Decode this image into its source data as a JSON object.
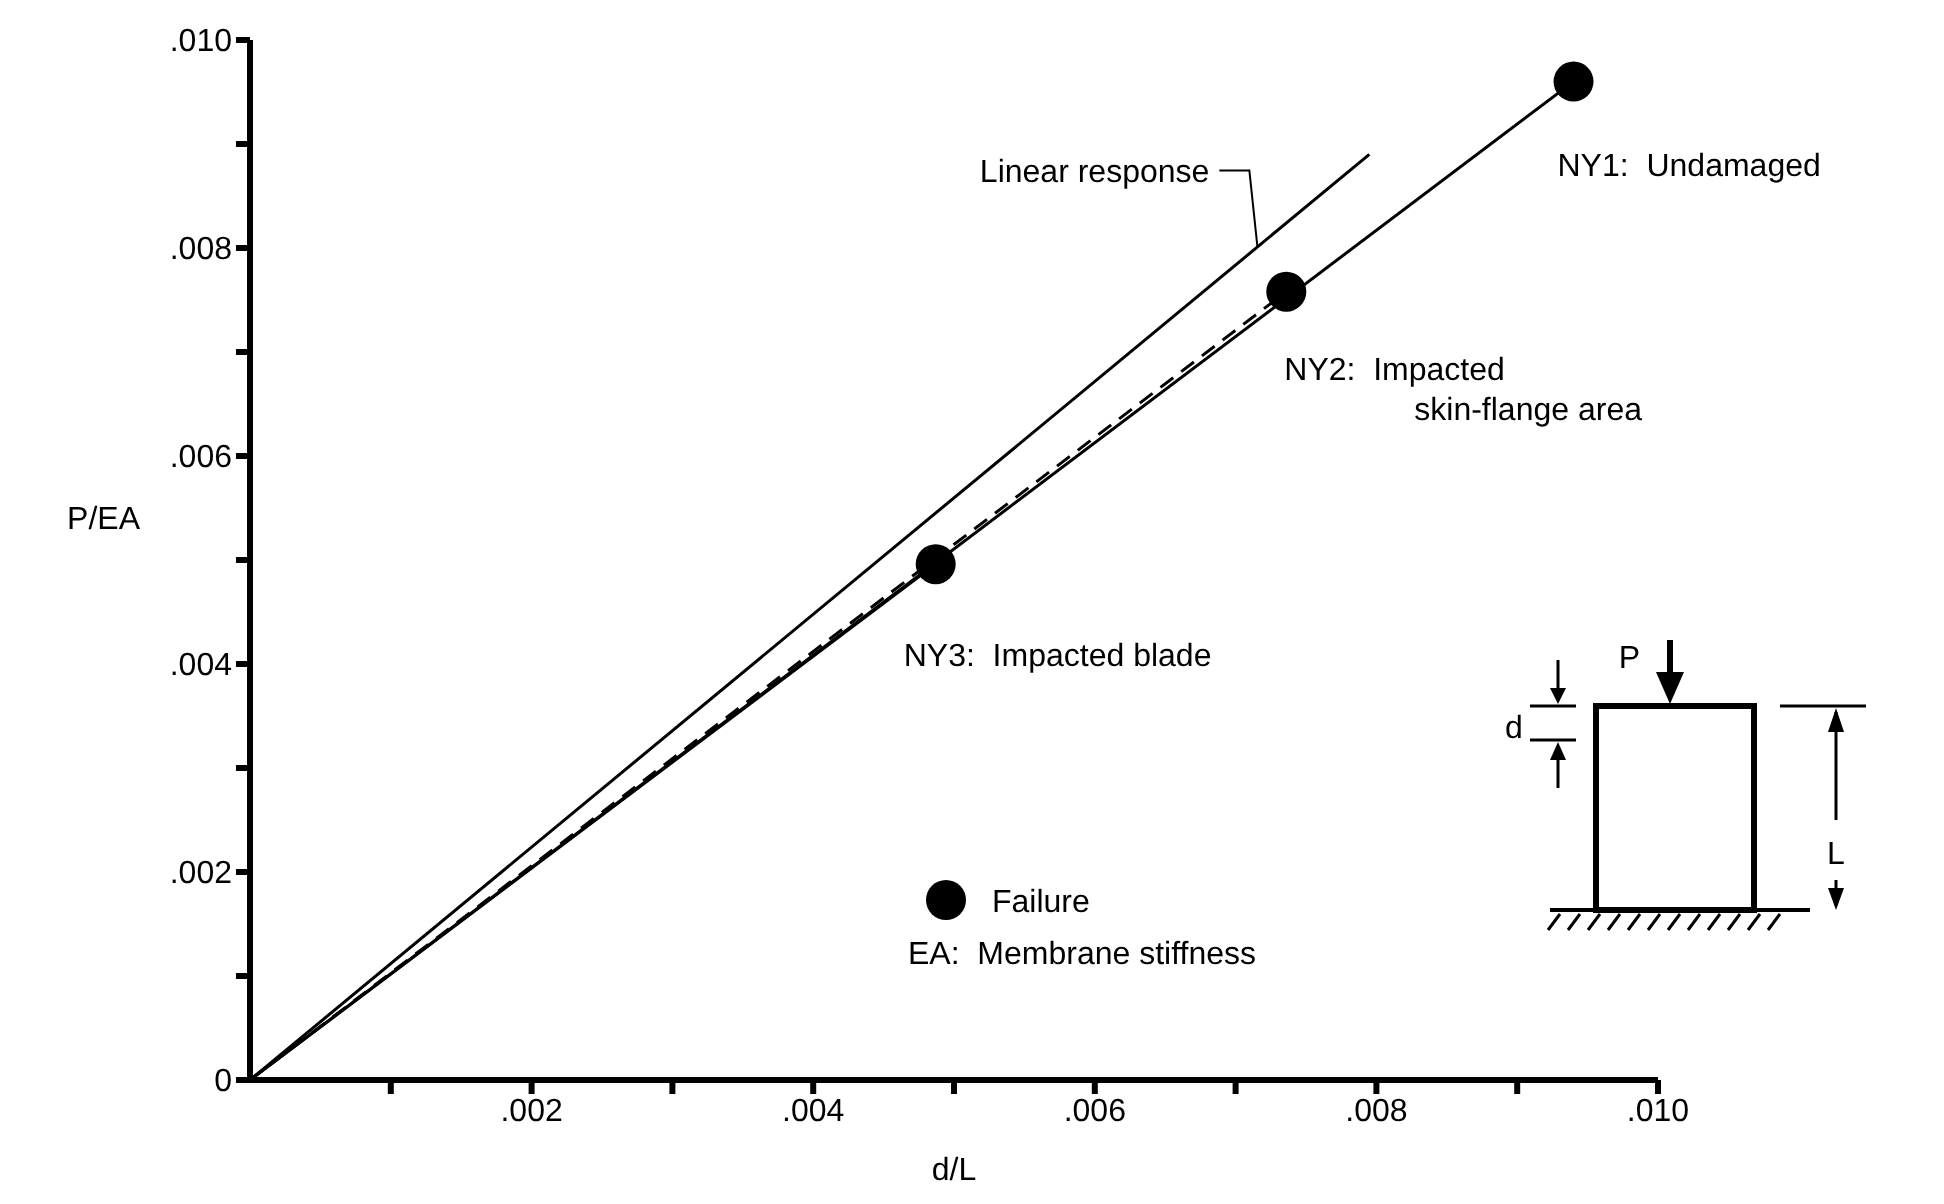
{
  "chart_data": {
    "type": "line",
    "xlabel": "d/L",
    "ylabel": "P/EA",
    "xlim": [
      0,
      0.01
    ],
    "ylim": [
      0,
      0.01
    ],
    "xticks": [
      {
        "value": 0.001,
        "label": null
      },
      {
        "value": 0.002,
        "label": ".002"
      },
      {
        "value": 0.003,
        "label": null
      },
      {
        "value": 0.004,
        "label": ".004"
      },
      {
        "value": 0.005,
        "label": null
      },
      {
        "value": 0.006,
        "label": ".006"
      },
      {
        "value": 0.007,
        "label": null
      },
      {
        "value": 0.008,
        "label": ".008"
      },
      {
        "value": 0.009,
        "label": null
      },
      {
        "value": 0.01,
        "label": ".010"
      }
    ],
    "yticks": [
      0,
      {
        "value": 0.001,
        "label": null
      },
      {
        "value": 0.002,
        "label": ".002"
      },
      {
        "value": 0.003,
        "label": null
      },
      {
        "value": 0.004,
        "label": ".004"
      },
      {
        "value": 0.005,
        "label": null
      },
      {
        "value": 0.006,
        "label": ".006"
      },
      {
        "value": 0.007,
        "label": null
      },
      {
        "value": 0.008,
        "label": ".008"
      },
      {
        "value": 0.009,
        "label": null
      },
      {
        "value": 0.01,
        "label": ".010"
      }
    ],
    "grid": false,
    "legend": "bottom",
    "series": [
      {
        "name": "Linear response",
        "color": "#000000",
        "marker": "none",
        "line_style": "solid",
        "x": [
          0,
          0.00795
        ],
        "values": [
          0,
          0.0089
        ]
      },
      {
        "name": "NY1: Undamaged",
        "color": "#000000",
        "marker": "none",
        "line_style": "solid",
        "x": [
          0,
          0.0094
        ],
        "values": [
          0,
          0.0096
        ]
      },
      {
        "name": "NY2: Impacted skin-flange area",
        "color": "#000000",
        "marker": "none",
        "line_style": "dashed",
        "x": [
          0,
          0.00736
        ],
        "values": [
          0,
          0.00758
        ]
      },
      {
        "name": "NY3: Impacted blade",
        "color": "#000000",
        "marker": "none",
        "line_style": "solid",
        "x": [
          0,
          0.00487
        ],
        "values": [
          0,
          0.00496
        ]
      },
      {
        "name": "Failure",
        "type": "scatter",
        "color": "#000000",
        "marker": "circle",
        "x": [
          0.0094,
          0.00736,
          0.00487
        ],
        "values": [
          0.0096,
          0.00758,
          0.00496
        ]
      }
    ],
    "annotations": [
      "EA: Membrane stiffness",
      "P",
      "d",
      "L"
    ]
  }
}
